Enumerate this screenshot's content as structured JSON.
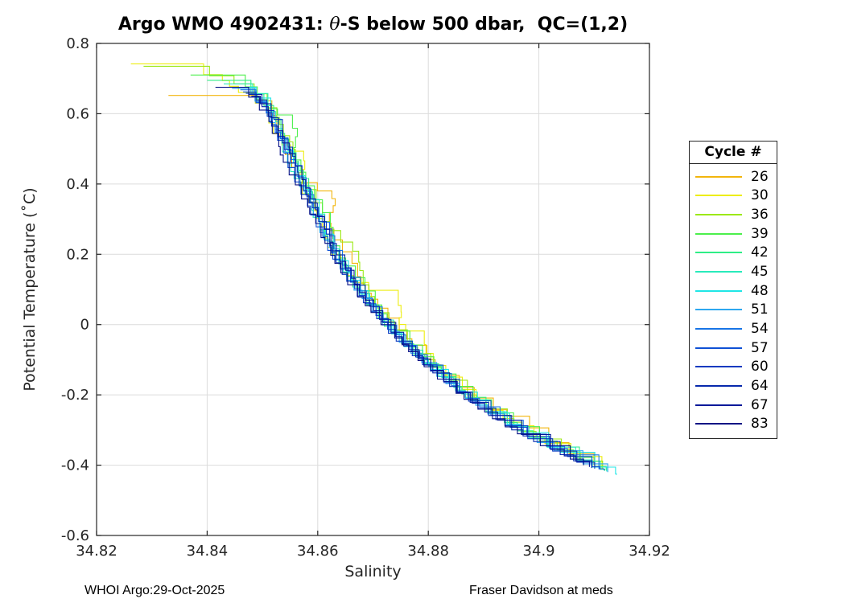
{
  "figure": {
    "title_prefix": "Argo WMO 4902431: ",
    "title_theta": "θ",
    "title_suffix": "-S below 500 dbar,  QC=(1,2)",
    "footer_left": "WHOI Argo:29-Oct-2025",
    "footer_right": "Fraser Davidson at meds"
  },
  "chart_data": {
    "type": "line",
    "title": "Argo WMO 4902431: θ-S below 500 dbar,  QC=(1,2)",
    "xlabel": "Salinity",
    "ylabel": "Potential Temperature (˚C)",
    "xlim": [
      34.82,
      34.92
    ],
    "ylim": [
      -0.6,
      0.8
    ],
    "xticks": [
      34.82,
      34.84,
      34.86,
      34.88,
      34.9,
      34.92
    ],
    "xtick_labels": [
      "34.82",
      "34.84",
      "34.86",
      "34.88",
      "34.9",
      "34.92"
    ],
    "yticks": [
      -0.6,
      -0.4,
      -0.2,
      0,
      0.2,
      0.4,
      0.6,
      0.8
    ],
    "ytick_labels": [
      "-0.6",
      "-0.4",
      "-0.2",
      "0",
      "0.2",
      "0.4",
      "0.6",
      "0.8"
    ],
    "grid": true,
    "grid_color": "#DCDCDC",
    "axis_color": "#262626",
    "line_width": 1.1,
    "legend": {
      "title": "Cycle #",
      "position": "right-outside"
    },
    "theta_S_backbone": {
      "theta": [
        0.745,
        0.72,
        0.7,
        0.675,
        0.65,
        0.625,
        0.6,
        0.55,
        0.5,
        0.45,
        0.4,
        0.35,
        0.3,
        0.25,
        0.2,
        0.15,
        0.1,
        0.05,
        0.0,
        -0.05,
        -0.1,
        -0.15,
        -0.2,
        -0.25,
        -0.3,
        -0.35,
        -0.4,
        -0.425
      ],
      "salinity": [
        34.8275,
        34.836,
        34.8425,
        34.846,
        34.848,
        34.8497,
        34.851,
        34.8528,
        34.854,
        34.8555,
        34.857,
        34.8585,
        34.86,
        34.8615,
        34.863,
        34.865,
        34.867,
        34.8695,
        34.872,
        34.875,
        34.8785,
        34.882,
        34.886,
        34.8905,
        34.8955,
        34.9015,
        34.9085,
        34.9135
      ]
    },
    "series": [
      {
        "name": "26",
        "color": "#F2B50C",
        "start_theta": 0.652,
        "start_salinity": 34.833,
        "end_theta": -0.4,
        "salinity_offset": 0.001,
        "wiggle": 1.9,
        "seed": 7,
        "excursions": [
          [
            0.34,
            0.004,
            0.05
          ],
          [
            -0.29,
            0.002,
            0.04
          ]
        ]
      },
      {
        "name": "30",
        "color": "#EDED0F",
        "start_theta": 0.742,
        "start_salinity": 34.8262,
        "end_theta": -0.41,
        "salinity_offset": 0.0008,
        "wiggle": 2.1,
        "seed": 13,
        "excursions": [
          [
            0.45,
            0.003,
            0.05
          ],
          [
            0.05,
            0.005,
            0.05
          ],
          [
            -0.05,
            0.003,
            0.04
          ]
        ]
      },
      {
        "name": "36",
        "color": "#9CE815",
        "start_theta": 0.735,
        "start_salinity": 34.8285,
        "end_theta": -0.412,
        "salinity_offset": 0.0006,
        "wiggle": 1.8,
        "seed": 21,
        "excursions": [
          [
            0.2,
            0.0025,
            0.05
          ]
        ]
      },
      {
        "name": "39",
        "color": "#4CEF4C",
        "start_theta": 0.71,
        "start_salinity": 34.837,
        "end_theta": -0.414,
        "salinity_offset": 0.0005,
        "wiggle": 1.5,
        "seed": 31,
        "excursions": [
          [
            0.55,
            0.002,
            0.05
          ]
        ]
      },
      {
        "name": "42",
        "color": "#2EEE86",
        "start_theta": 0.695,
        "start_salinity": 34.84,
        "end_theta": -0.416,
        "salinity_offset": 0.0004,
        "wiggle": 1.4,
        "seed": 41,
        "excursions": []
      },
      {
        "name": "45",
        "color": "#28EBBB",
        "start_theta": 0.685,
        "start_salinity": 34.843,
        "end_theta": -0.418,
        "salinity_offset": 0.0003,
        "wiggle": 1.3,
        "seed": 55,
        "excursions": []
      },
      {
        "name": "48",
        "color": "#20E6E6",
        "start_theta": 0.675,
        "start_salinity": 34.8455,
        "end_theta": -0.428,
        "salinity_offset": 0.0002,
        "wiggle": 1.25,
        "seed": 61,
        "excursions": []
      },
      {
        "name": "51",
        "color": "#2EA8F0",
        "start_theta": 0.672,
        "start_salinity": 34.8445,
        "end_theta": -0.42,
        "salinity_offset": 0.0001,
        "wiggle": 1.2,
        "seed": 71,
        "excursions": []
      },
      {
        "name": "54",
        "color": "#1874E6",
        "start_theta": 0.668,
        "start_salinity": 34.846,
        "end_theta": -0.415,
        "salinity_offset": 0.0,
        "wiggle": 1.2,
        "seed": 83,
        "excursions": []
      },
      {
        "name": "57",
        "color": "#0F51D5",
        "start_theta": 0.662,
        "start_salinity": 34.8465,
        "end_theta": -0.412,
        "salinity_offset": -0.0001,
        "wiggle": 1.15,
        "seed": 97,
        "excursions": []
      },
      {
        "name": "60",
        "color": "#0A3AC0",
        "start_theta": 0.658,
        "start_salinity": 34.847,
        "end_theta": -0.41,
        "salinity_offset": -0.0002,
        "wiggle": 1.1,
        "seed": 101,
        "excursions": []
      },
      {
        "name": "64",
        "color": "#0728AC",
        "start_theta": 0.655,
        "start_salinity": 34.8475,
        "end_theta": -0.408,
        "salinity_offset": -0.0003,
        "wiggle": 1.1,
        "seed": 113,
        "excursions": []
      },
      {
        "name": "67",
        "color": "#041899",
        "start_theta": 0.65,
        "start_salinity": 34.848,
        "end_theta": -0.405,
        "salinity_offset": -0.0004,
        "wiggle": 1.05,
        "seed": 127,
        "excursions": []
      },
      {
        "name": "83",
        "color": "#020D84",
        "start_theta": 0.675,
        "start_salinity": 34.8415,
        "end_theta": -0.4,
        "salinity_offset": -0.0004,
        "wiggle": 1.15,
        "seed": 139,
        "excursions": []
      }
    ]
  }
}
